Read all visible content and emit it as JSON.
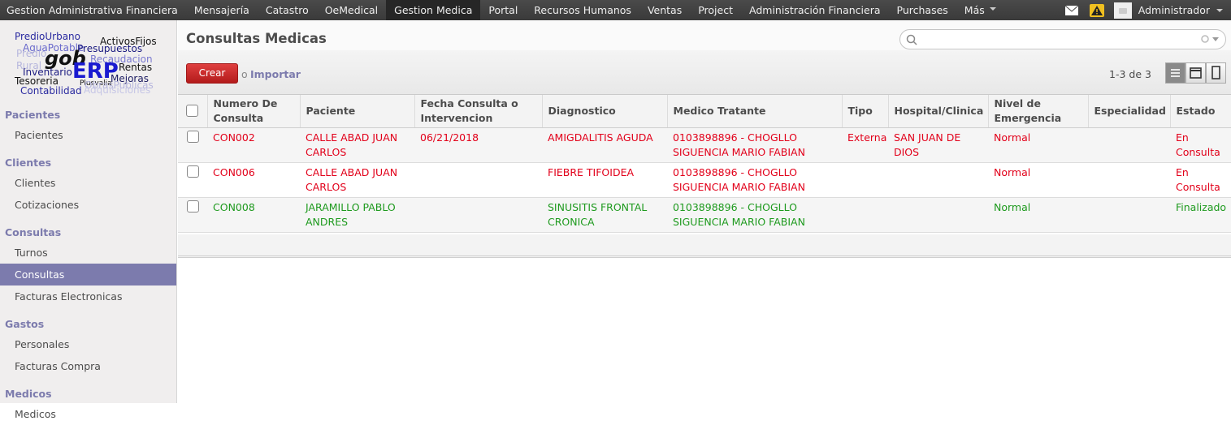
{
  "topnav": {
    "menus": [
      {
        "label": "Gestion Administrativa Financiera"
      },
      {
        "label": "Mensajería"
      },
      {
        "label": "Catastro"
      },
      {
        "label": "OeMedical"
      },
      {
        "label": "Gestion Medica",
        "active": true
      },
      {
        "label": "Portal"
      },
      {
        "label": "Recursos Humanos"
      },
      {
        "label": "Ventas"
      },
      {
        "label": "Project"
      },
      {
        "label": "Administración Financiera"
      },
      {
        "label": "Purchases"
      },
      {
        "label": "Más",
        "dropdown": true
      }
    ],
    "user": "Administrador"
  },
  "logo": {
    "words": [
      "PredioUrbano",
      "ActivosFijos",
      "AguaPotable",
      "Presupuestos",
      "Predio",
      "Recaudacion",
      "Rural",
      "gob",
      "ERP",
      "Rentas",
      "Inventario",
      "Tesoreria",
      "Plusvalia",
      "Mejoras",
      "ObrasPublicas",
      "Contabilidad",
      "Adquisiciones"
    ]
  },
  "sidebar": {
    "sections": [
      {
        "title": "Pacientes",
        "items": [
          {
            "label": "Pacientes"
          }
        ]
      },
      {
        "title": "Clientes",
        "items": [
          {
            "label": "Clientes"
          },
          {
            "label": "Cotizaciones"
          }
        ]
      },
      {
        "title": "Consultas",
        "items": [
          {
            "label": "Turnos"
          },
          {
            "label": "Consultas",
            "active": true
          },
          {
            "label": "Facturas Electronicas"
          }
        ]
      },
      {
        "title": "Gastos",
        "items": [
          {
            "label": "Personales"
          },
          {
            "label": "Facturas Compra"
          }
        ]
      },
      {
        "title": "Medicos",
        "items": [
          {
            "label": "Medicos"
          }
        ]
      }
    ]
  },
  "view": {
    "title": "Consultas Medicas",
    "create": "Crear",
    "or": "o",
    "import": "Importar",
    "pager": "1-3 de 3"
  },
  "table": {
    "columns": [
      "Numero De Consulta",
      "Paciente",
      "Fecha Consulta o Intervencion",
      "Diagnostico",
      "Medico Tratante",
      "Tipo",
      "Hospital/Clinica",
      "Nivel de Emergencia",
      "Especialidad",
      "Estado"
    ],
    "rows": [
      {
        "color": "#e2001a",
        "cells": [
          "CON002",
          "CALLE ABAD JUAN CARLOS",
          "06/21/2018",
          "AMIGDALITIS AGUDA",
          "0103898896 - CHOGLLO SIGUENCIA MARIO FABIAN",
          "Externa",
          "SAN JUAN DE DIOS",
          "Normal",
          null,
          "En Consulta"
        ]
      },
      {
        "color": "#e2001a",
        "cells": [
          "CON006",
          "CALLE ABAD JUAN CARLOS",
          null,
          "FIEBRE TIFOIDEA",
          "0103898896 - CHOGLLO SIGUENCIA MARIO FABIAN",
          null,
          null,
          "Normal",
          null,
          "En Consulta"
        ]
      },
      {
        "color": "#1e9a1e",
        "cells": [
          "CON008",
          "JARAMILLO PABLO ANDRES",
          null,
          "SINUSITIS FRONTAL CRONICA",
          "0103898896 - CHOGLLO SIGUENCIA MARIO FABIAN",
          null,
          null,
          "Normal",
          null,
          "Finalizado"
        ]
      }
    ]
  }
}
